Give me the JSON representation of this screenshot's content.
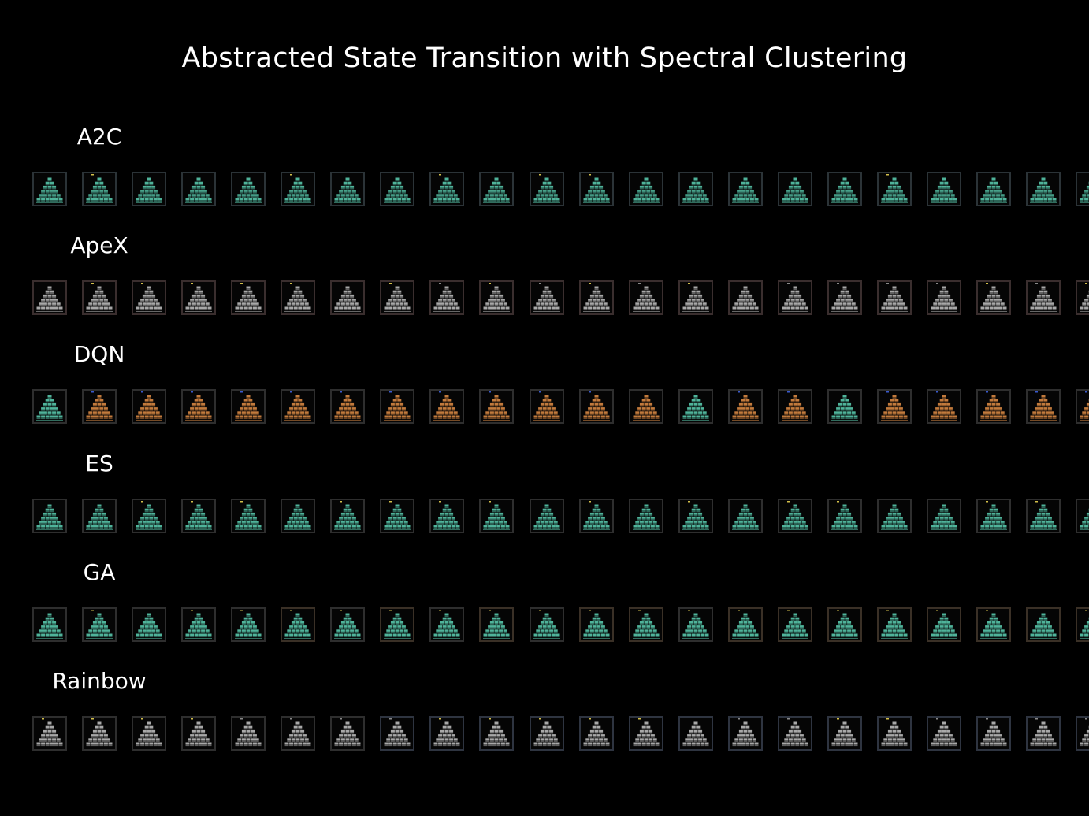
{
  "title": "Abstracted State Transition with Spectral Clustering",
  "colors": {
    "background": "#000000",
    "text": "#ffffff",
    "teal": "#4fb39a",
    "gray": "#a8a8a8",
    "orange": "#c27a3c"
  },
  "rows": [
    {
      "label": "A2C",
      "frames": [
        {
          "color": "teal",
          "marker": "",
          "border": "#2b3337"
        },
        {
          "color": "teal",
          "marker": "#d4c04a",
          "border": "#2b3337"
        },
        {
          "color": "teal",
          "marker": "",
          "border": "#2b3337"
        },
        {
          "color": "teal",
          "marker": "",
          "border": "#2b3337"
        },
        {
          "color": "teal",
          "marker": "",
          "border": "#2b3337"
        },
        {
          "color": "teal",
          "marker": "#d4c04a",
          "border": "#2b3337"
        },
        {
          "color": "teal",
          "marker": "",
          "border": "#2b3337"
        },
        {
          "color": "teal",
          "marker": "",
          "border": "#2b3337"
        },
        {
          "color": "teal",
          "marker": "#d4c04a",
          "border": "#2b3337"
        },
        {
          "color": "teal",
          "marker": "",
          "border": "#2b3337"
        },
        {
          "color": "teal",
          "marker": "#d4c04a",
          "border": "#2b3337"
        },
        {
          "color": "teal",
          "marker": "#d4c04a",
          "border": "#2b3337"
        },
        {
          "color": "teal",
          "marker": "",
          "border": "#2b3337"
        },
        {
          "color": "teal",
          "marker": "",
          "border": "#2b3337"
        },
        {
          "color": "teal",
          "marker": "",
          "border": "#2b3337"
        },
        {
          "color": "teal",
          "marker": "",
          "border": "#2b3337"
        },
        {
          "color": "teal",
          "marker": "",
          "border": "#2b3337"
        },
        {
          "color": "teal",
          "marker": "#d4c04a",
          "border": "#2b3337"
        },
        {
          "color": "teal",
          "marker": "",
          "border": "#2b3337"
        },
        {
          "color": "teal",
          "marker": "",
          "border": "#2b3337"
        },
        {
          "color": "teal",
          "marker": "",
          "border": "#2b3337"
        },
        {
          "color": "teal",
          "marker": "",
          "border": "#2b3337"
        }
      ]
    },
    {
      "label": "ApeX",
      "frames": [
        {
          "color": "gray",
          "marker": "",
          "border": "#3a2e2e"
        },
        {
          "color": "gray",
          "marker": "#d4c04a",
          "border": "#3a2e2e"
        },
        {
          "color": "gray",
          "marker": "#d4c04a",
          "border": "#3a2e2e"
        },
        {
          "color": "gray",
          "marker": "#d4c04a",
          "border": "#3a2e2e"
        },
        {
          "color": "gray",
          "marker": "#d4c04a",
          "border": "#3a2e2e"
        },
        {
          "color": "gray",
          "marker": "#d4c04a",
          "border": "#3a2e2e"
        },
        {
          "color": "gray",
          "marker": "",
          "border": "#3a2e2e"
        },
        {
          "color": "gray",
          "marker": "#d4c04a",
          "border": "#3a2e2e"
        },
        {
          "color": "gray",
          "marker": "#8a8a8a",
          "border": "#3a2e2e"
        },
        {
          "color": "gray",
          "marker": "#d4c04a",
          "border": "#3a2e2e"
        },
        {
          "color": "gray",
          "marker": "#8a8a8a",
          "border": "#3a2e2e"
        },
        {
          "color": "gray",
          "marker": "#d4c04a",
          "border": "#3a2e2e"
        },
        {
          "color": "gray",
          "marker": "#8a8a8a",
          "border": "#3a2e2e"
        },
        {
          "color": "gray",
          "marker": "#d4c04a",
          "border": "#3a2e2e"
        },
        {
          "color": "gray",
          "marker": "",
          "border": "#3a2e2e"
        },
        {
          "color": "gray",
          "marker": "#8a8a8a",
          "border": "#3a2e2e"
        },
        {
          "color": "gray",
          "marker": "#8a8a8a",
          "border": "#3a2e2e"
        },
        {
          "color": "gray",
          "marker": "#8a8a8a",
          "border": "#3a2e2e"
        },
        {
          "color": "gray",
          "marker": "#8a8a8a",
          "border": "#3a2e2e"
        },
        {
          "color": "gray",
          "marker": "#d4c04a",
          "border": "#3a2e2e"
        },
        {
          "color": "gray",
          "marker": "#8a8a8a",
          "border": "#3a2e2e"
        },
        {
          "color": "gray",
          "marker": "#d4c04a",
          "border": "#3a2e2e"
        }
      ]
    },
    {
      "label": "DQN",
      "frames": [
        {
          "color": "teal",
          "marker": "",
          "border": "#2e2e2e"
        },
        {
          "color": "orange",
          "marker": "#3a5ad0",
          "border": "#2e2e2e"
        },
        {
          "color": "orange",
          "marker": "#3a5ad0",
          "border": "#2e2e2e"
        },
        {
          "color": "orange",
          "marker": "#3a5ad0",
          "border": "#2e2e2e"
        },
        {
          "color": "orange",
          "marker": "#3a5ad0",
          "border": "#2e2e2e"
        },
        {
          "color": "orange",
          "marker": "#3a5ad0",
          "border": "#2e2e2e"
        },
        {
          "color": "orange",
          "marker": "#3a5ad0",
          "border": "#2e2e2e"
        },
        {
          "color": "orange",
          "marker": "#3a5ad0",
          "border": "#2e2e2e"
        },
        {
          "color": "orange",
          "marker": "#3a5ad0",
          "border": "#2e2e2e"
        },
        {
          "color": "orange",
          "marker": "#3a5ad0",
          "border": "#2e2e2e"
        },
        {
          "color": "orange",
          "marker": "#3a5ad0",
          "border": "#2e2e2e"
        },
        {
          "color": "orange",
          "marker": "#3a5ad0",
          "border": "#2e2e2e"
        },
        {
          "color": "orange",
          "marker": "",
          "border": "#2e2e2e"
        },
        {
          "color": "teal",
          "marker": "",
          "border": "#2e2e2e"
        },
        {
          "color": "orange",
          "marker": "#3a5ad0",
          "border": "#2e2e2e"
        },
        {
          "color": "orange",
          "marker": "#3a5ad0",
          "border": "#2e2e2e"
        },
        {
          "color": "teal",
          "marker": "",
          "border": "#2e2e2e"
        },
        {
          "color": "orange",
          "marker": "#3a5ad0",
          "border": "#2e2e2e"
        },
        {
          "color": "orange",
          "marker": "#3a5ad0",
          "border": "#2e2e2e"
        },
        {
          "color": "orange",
          "marker": "#3a5ad0",
          "border": "#2e2e2e"
        },
        {
          "color": "orange",
          "marker": "#3a5ad0",
          "border": "#2e2e2e"
        },
        {
          "color": "orange",
          "marker": "#3a5ad0",
          "border": "#2e2e2e"
        }
      ]
    },
    {
      "label": "ES",
      "frames": [
        {
          "color": "teal",
          "marker": "",
          "border": "#2e2e2e"
        },
        {
          "color": "teal",
          "marker": "",
          "border": "#2e2e2e"
        },
        {
          "color": "teal",
          "marker": "#d4c04a",
          "border": "#2e2e2e"
        },
        {
          "color": "teal",
          "marker": "#d4c04a",
          "border": "#2e2e2e"
        },
        {
          "color": "teal",
          "marker": "#d4c04a",
          "border": "#2e2e2e"
        },
        {
          "color": "teal",
          "marker": "",
          "border": "#2e2e2e"
        },
        {
          "color": "teal",
          "marker": "#d4c04a",
          "border": "#2e2e2e"
        },
        {
          "color": "teal",
          "marker": "#d4c04a",
          "border": "#2e2e2e"
        },
        {
          "color": "teal",
          "marker": "#d4c04a",
          "border": "#2e2e2e"
        },
        {
          "color": "teal",
          "marker": "#d4c04a",
          "border": "#2e2e2e"
        },
        {
          "color": "teal",
          "marker": "",
          "border": "#2e2e2e"
        },
        {
          "color": "teal",
          "marker": "#d4c04a",
          "border": "#2e2e2e"
        },
        {
          "color": "teal",
          "marker": "",
          "border": "#2e2e2e"
        },
        {
          "color": "teal",
          "marker": "#d4c04a",
          "border": "#2e2e2e"
        },
        {
          "color": "teal",
          "marker": "",
          "border": "#2e2e2e"
        },
        {
          "color": "teal",
          "marker": "#d4c04a",
          "border": "#2e2e2e"
        },
        {
          "color": "teal",
          "marker": "#d4c04a",
          "border": "#2e2e2e"
        },
        {
          "color": "teal",
          "marker": "",
          "border": "#2e2e2e"
        },
        {
          "color": "teal",
          "marker": "",
          "border": "#2e2e2e"
        },
        {
          "color": "teal",
          "marker": "#d4c04a",
          "border": "#2e2e2e"
        },
        {
          "color": "teal",
          "marker": "#d4c04a",
          "border": "#2e2e2e"
        },
        {
          "color": "teal",
          "marker": "",
          "border": "#2e2e2e"
        }
      ]
    },
    {
      "label": "GA",
      "frames": [
        {
          "color": "teal",
          "marker": "",
          "border": "#2e2e2e"
        },
        {
          "color": "teal",
          "marker": "#d4c04a",
          "border": "#2e2e2e"
        },
        {
          "color": "teal",
          "marker": "",
          "border": "#2e2e2e"
        },
        {
          "color": "teal",
          "marker": "#d4c04a",
          "border": "#2e2e2e"
        },
        {
          "color": "teal",
          "marker": "#d4c04a",
          "border": "#2e2e2e"
        },
        {
          "color": "teal",
          "marker": "#d4c04a",
          "border": "#3a3026"
        },
        {
          "color": "teal",
          "marker": "#d4c04a",
          "border": "#2e2e2e"
        },
        {
          "color": "teal",
          "marker": "#d4c04a",
          "border": "#3a3026"
        },
        {
          "color": "teal",
          "marker": "#d4c04a",
          "border": "#2e2e2e"
        },
        {
          "color": "teal",
          "marker": "#d4c04a",
          "border": "#3a3026"
        },
        {
          "color": "teal",
          "marker": "#d4c04a",
          "border": "#2e2e2e"
        },
        {
          "color": "teal",
          "marker": "#d4c04a",
          "border": "#3a3026"
        },
        {
          "color": "teal",
          "marker": "#d4c04a",
          "border": "#3a3026"
        },
        {
          "color": "teal",
          "marker": "#d4c04a",
          "border": "#2e2e2e"
        },
        {
          "color": "teal",
          "marker": "#d4c04a",
          "border": "#3a3026"
        },
        {
          "color": "teal",
          "marker": "#d4c04a",
          "border": "#3a3026"
        },
        {
          "color": "teal",
          "marker": "#d4c04a",
          "border": "#3a3026"
        },
        {
          "color": "teal",
          "marker": "#d4c04a",
          "border": "#3a3026"
        },
        {
          "color": "teal",
          "marker": "#d4c04a",
          "border": "#3a3026"
        },
        {
          "color": "teal",
          "marker": "#d4c04a",
          "border": "#3a3026"
        },
        {
          "color": "teal",
          "marker": "",
          "border": "#3a3026"
        },
        {
          "color": "teal",
          "marker": "#d4c04a",
          "border": "#3a3026"
        }
      ]
    },
    {
      "label": "Rainbow",
      "frames": [
        {
          "color": "gray",
          "marker": "#d4c04a",
          "border": "#2e2e2e"
        },
        {
          "color": "gray",
          "marker": "#d4c04a",
          "border": "#2e2e2e"
        },
        {
          "color": "gray",
          "marker": "#d4c04a",
          "border": "#2e2e2e"
        },
        {
          "color": "gray",
          "marker": "#d4c04a",
          "border": "#2e2e2e"
        },
        {
          "color": "gray",
          "marker": "#8a8a8a",
          "border": "#2e2e2e"
        },
        {
          "color": "gray",
          "marker": "#8a8a8a",
          "border": "#2e2e2e"
        },
        {
          "color": "gray",
          "marker": "#8a8a8a",
          "border": "#2e2e2e"
        },
        {
          "color": "gray",
          "marker": "#8a8a8a",
          "border": "#2e3440"
        },
        {
          "color": "gray",
          "marker": "#d4c04a",
          "border": "#2e3440"
        },
        {
          "color": "gray",
          "marker": "#d4c04a",
          "border": "#2e3440"
        },
        {
          "color": "gray",
          "marker": "#d4c04a",
          "border": "#2e3440"
        },
        {
          "color": "gray",
          "marker": "#d4c04a",
          "border": "#2e3440"
        },
        {
          "color": "gray",
          "marker": "#d4c04a",
          "border": "#2e3440"
        },
        {
          "color": "gray",
          "marker": "",
          "border": "#2e3440"
        },
        {
          "color": "gray",
          "marker": "#8a8a8a",
          "border": "#2e3440"
        },
        {
          "color": "gray",
          "marker": "#8a8a8a",
          "border": "#2e3440"
        },
        {
          "color": "gray",
          "marker": "#d4c04a",
          "border": "#2e3440"
        },
        {
          "color": "gray",
          "marker": "#d4c04a",
          "border": "#2e3440"
        },
        {
          "color": "gray",
          "marker": "#8a8a8a",
          "border": "#2e3440"
        },
        {
          "color": "gray",
          "marker": "#8a8a8a",
          "border": "#2e3440"
        },
        {
          "color": "gray",
          "marker": "#8a8a8a",
          "border": "#2e3440"
        },
        {
          "color": "gray",
          "marker": "#8a8a8a",
          "border": "#2e3440"
        }
      ]
    }
  ]
}
